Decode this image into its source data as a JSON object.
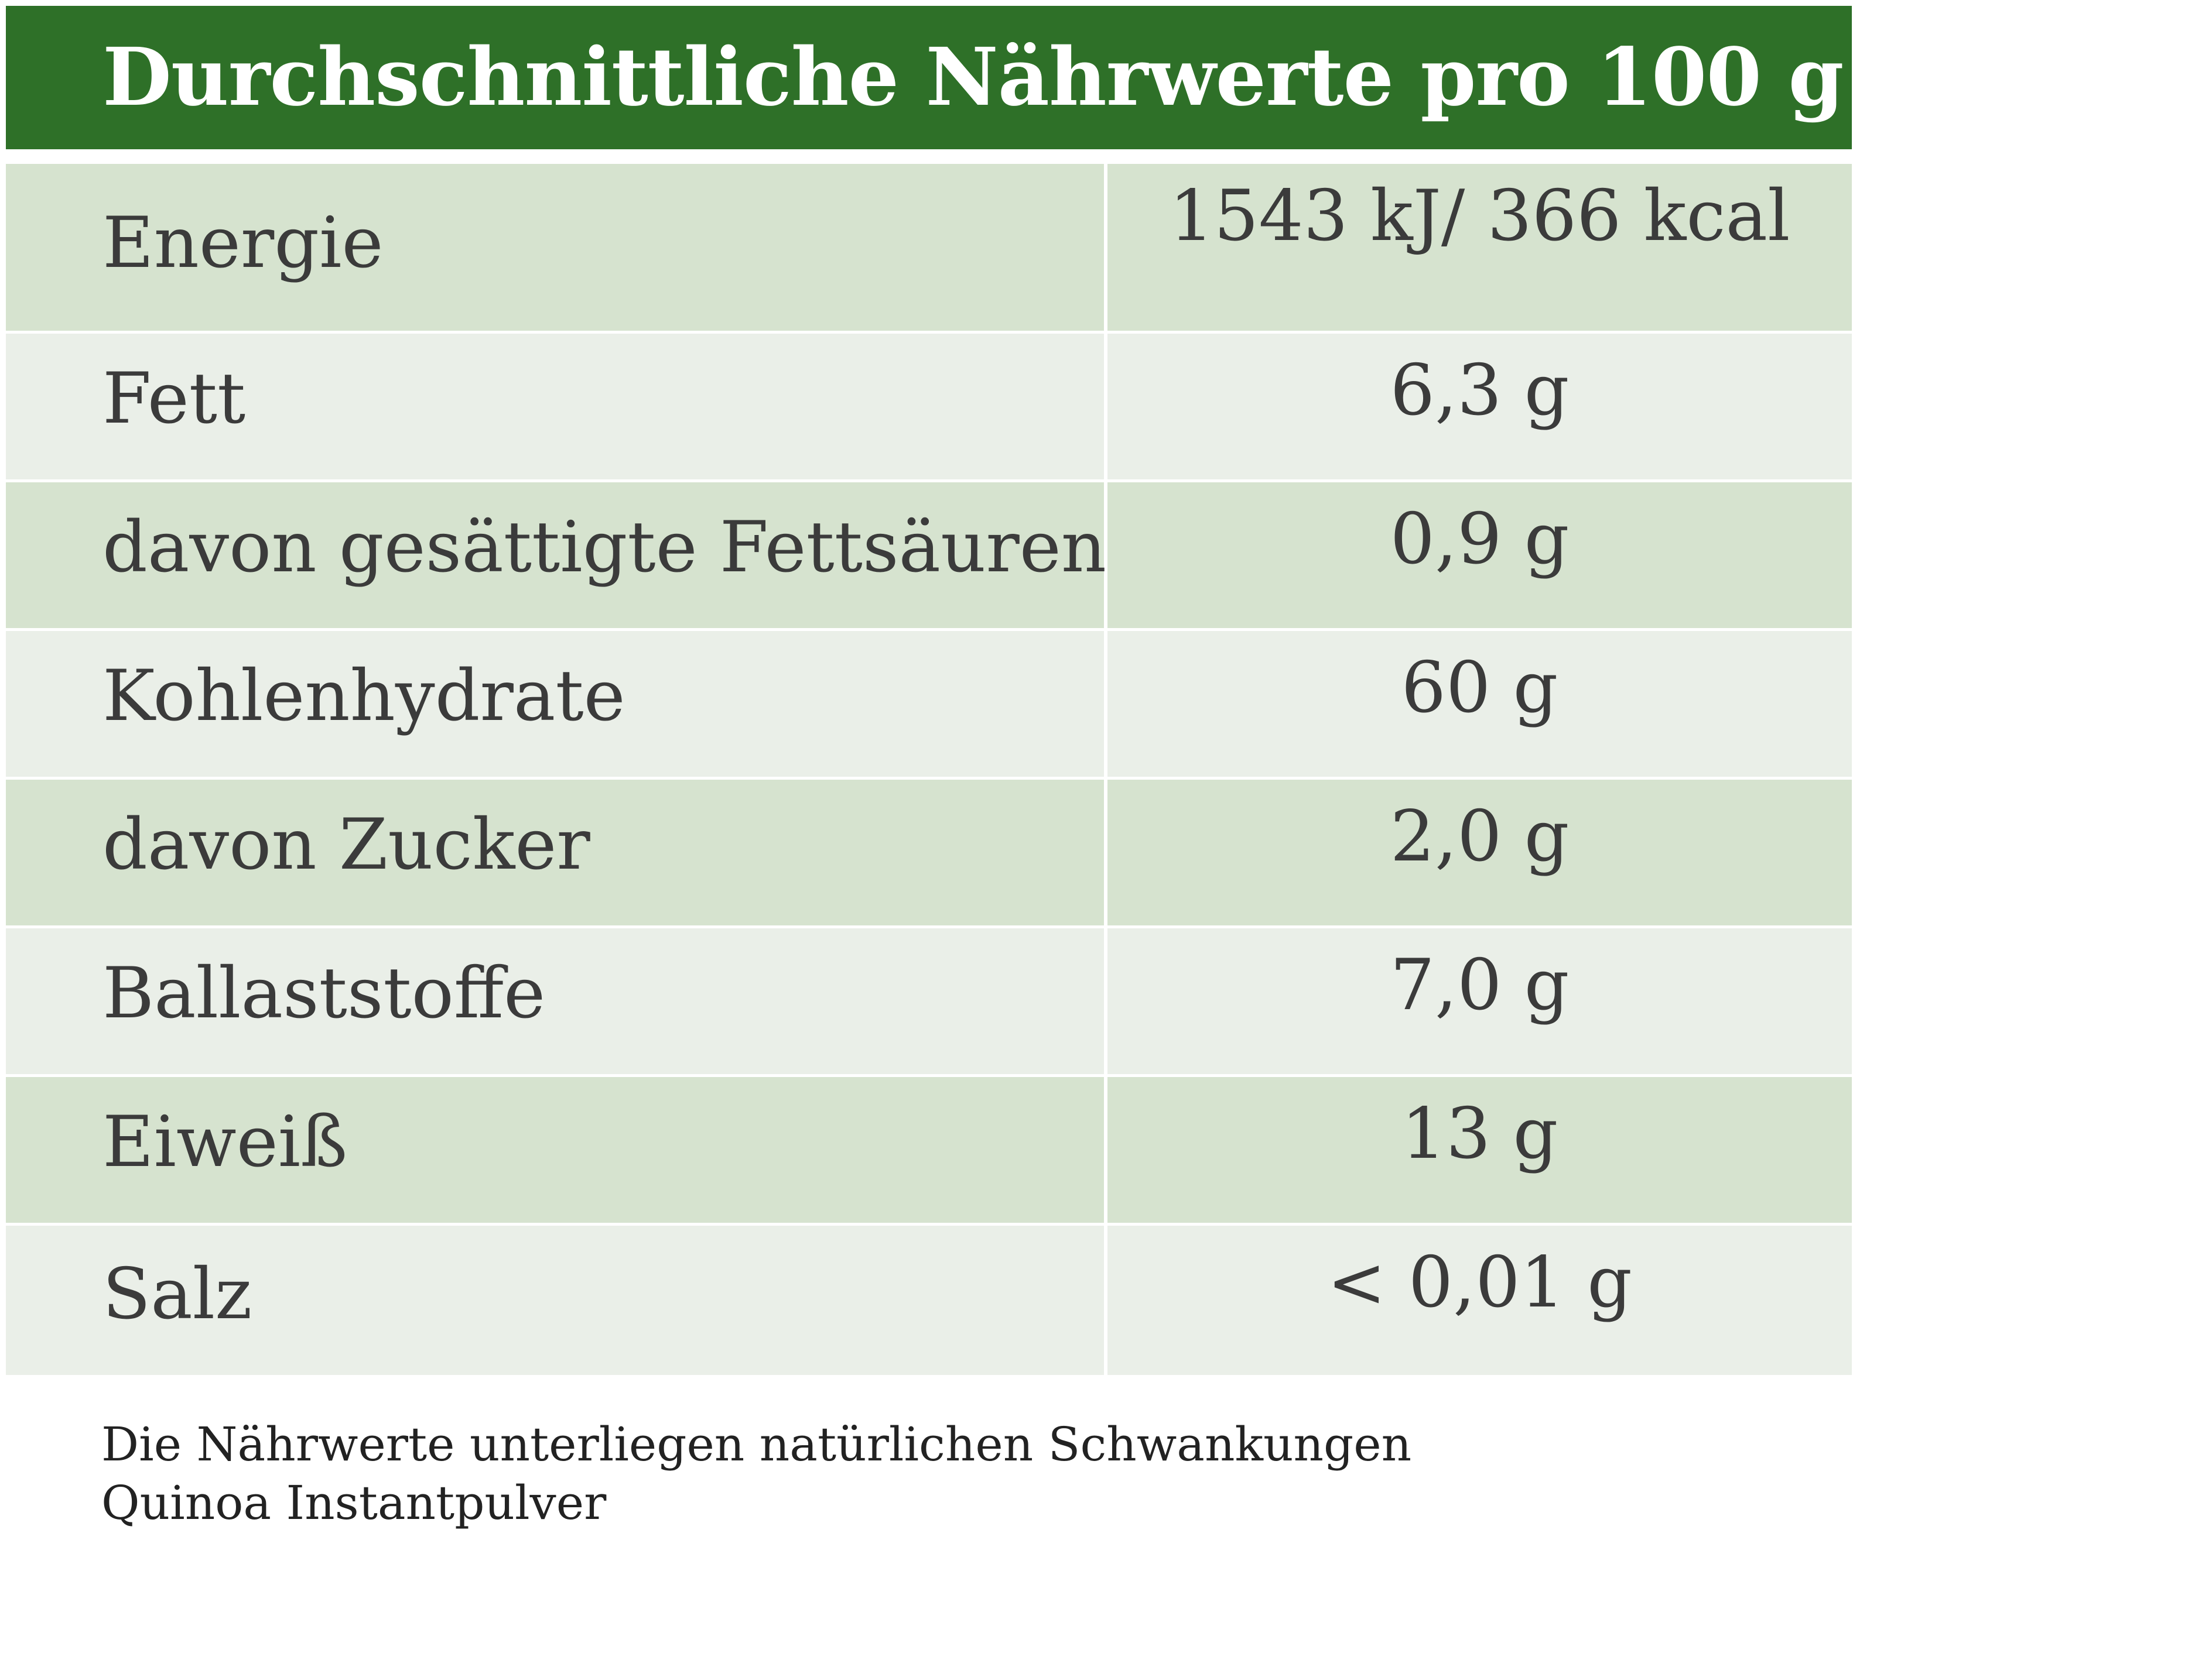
{
  "header": {
    "title": "Durchschnittliche Nährwerte pro 100 g"
  },
  "rows": [
    {
      "label": "Energie",
      "value": "1543 kJ/ 366 kcal"
    },
    {
      "label": "Fett",
      "value": "6,3 g"
    },
    {
      "label": "davon gesättigte Fettsäuren",
      "value": "0,9 g"
    },
    {
      "label": "Kohlenhydrate",
      "value": "60 g"
    },
    {
      "label": "davon Zucker",
      "value": "2,0 g"
    },
    {
      "label": "Ballaststoffe",
      "value": "7,0 g"
    },
    {
      "label": "Eiweiß",
      "value": "13 g"
    },
    {
      "label": "Salz",
      "value": "< 0,01 g"
    }
  ],
  "footer": {
    "note": "Die Nährwerte unterliegen natürlichen Schwankungen",
    "product": "Quinoa Instantpulver"
  },
  "colors": {
    "header_bg": "#2e7028",
    "row_dark": "#d6e3cf",
    "row_light": "#eaefe8"
  }
}
